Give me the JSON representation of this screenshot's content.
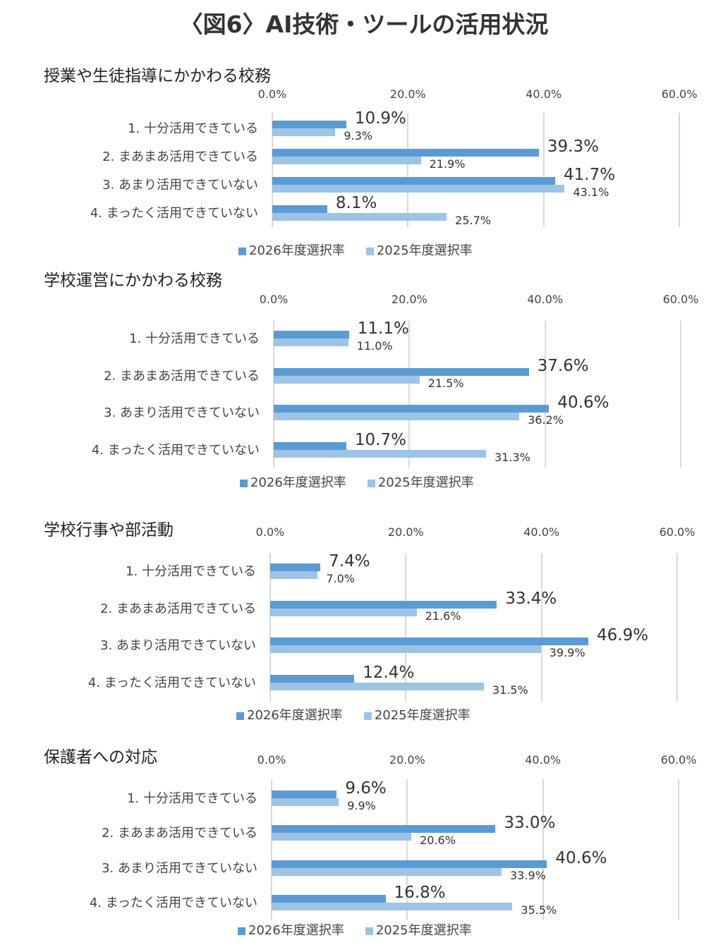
{
  "title": "〈図6〉AI技術・ツールの活用状況",
  "colors": {
    "y2026": "#5B9BD5",
    "y2025": "#9DC3E6"
  },
  "chart_data": [
    {
      "type": "bar",
      "title": "授業や生徒指導にかかわる校務",
      "categories": [
        "1. 十分活用できている",
        "2. まあまあ活用できている",
        "3. あまり活用できていない",
        "4. まったく活用できていない"
      ],
      "series": [
        {
          "name": "2026年度選択率",
          "values": [
            10.9,
            39.3,
            41.7,
            8.1
          ],
          "labels": [
            "10.9%",
            "39.3%",
            "41.7%",
            "8.1%"
          ]
        },
        {
          "name": "2025年度選択率",
          "values": [
            9.3,
            21.9,
            43.1,
            25.7
          ],
          "labels": [
            "9.3%",
            "21.9%",
            "43.1%",
            "25.7%"
          ]
        }
      ],
      "xlim": [
        0,
        60
      ],
      "ticks": [
        "0.0%",
        "20.0%",
        "40.0%",
        "60.0%"
      ],
      "legend": "bottom"
    },
    {
      "type": "bar",
      "title": "学校運営にかかわる校務",
      "categories": [
        "1. 十分活用できている",
        "2. まあまあ活用できている",
        "3. あまり活用できていない",
        "4. まったく活用できていない"
      ],
      "series": [
        {
          "name": "2026年度選択率",
          "values": [
            11.1,
            37.6,
            40.6,
            10.7
          ],
          "labels": [
            "11.1%",
            "37.6%",
            "40.6%",
            "10.7%"
          ]
        },
        {
          "name": "2025年度選択率",
          "values": [
            11.0,
            21.5,
            36.2,
            31.3
          ],
          "labels": [
            "11.0%",
            "21.5%",
            "36.2%",
            "31.3%"
          ]
        }
      ],
      "xlim": [
        0,
        60
      ],
      "ticks": [
        "0.0%",
        "20.0%",
        "40.0%",
        "60.0%"
      ],
      "legend": "bottom"
    },
    {
      "type": "bar",
      "title": "学校行事や部活動",
      "categories": [
        "1. 十分活用できている",
        "2. まあまあ活用できている",
        "3. あまり活用できていない",
        "4. まったく活用できていない"
      ],
      "series": [
        {
          "name": "2026年度選択率",
          "values": [
            7.4,
            33.4,
            46.9,
            12.4
          ],
          "labels": [
            "7.4%",
            "33.4%",
            "46.9%",
            "12.4%"
          ]
        },
        {
          "name": "2025年度選択率",
          "values": [
            7.0,
            21.6,
            39.9,
            31.5
          ],
          "labels": [
            "7.0%",
            "21.6%",
            "39.9%",
            "31.5%"
          ]
        }
      ],
      "xlim": [
        0,
        60
      ],
      "ticks": [
        "0.0%",
        "20.0%",
        "40.0%",
        "60.0%"
      ],
      "legend": "bottom"
    },
    {
      "type": "bar",
      "title": "保護者への対応",
      "categories": [
        "1. 十分活用できている",
        "2. まあまあ活用できている",
        "3. あまり活用できていない",
        "4. まったく活用できていない"
      ],
      "series": [
        {
          "name": "2026年度選択率",
          "values": [
            9.6,
            33.0,
            40.6,
            16.8
          ],
          "labels": [
            "9.6%",
            "33.0%",
            "40.6%",
            "16.8%"
          ]
        },
        {
          "name": "2025年度選択率",
          "values": [
            9.9,
            20.6,
            33.9,
            35.5
          ],
          "labels": [
            "9.9%",
            "20.6%",
            "33.9%",
            "35.5%"
          ]
        }
      ],
      "xlim": [
        0,
        60
      ],
      "ticks": [
        "0.0%",
        "20.0%",
        "40.0%",
        "60.0%"
      ],
      "legend": "bottom"
    }
  ]
}
